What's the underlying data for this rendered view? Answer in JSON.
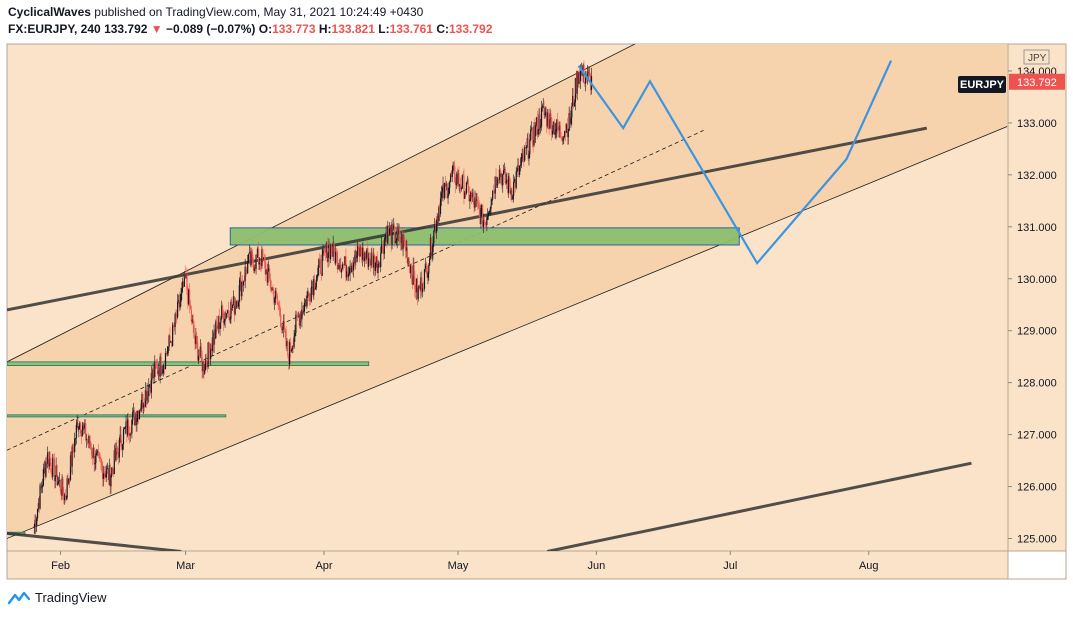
{
  "header": {
    "author": "CyclicalWaves",
    "published_text": " published on TradingView.com, May 31, 2021 10:24:49 +0430",
    "symbol": "FX:EURJPY, 240",
    "last": "133.792",
    "change_arrow": "▼",
    "change": "−0.089 (−0.07%)",
    "open_label": "O:",
    "open": "133.773",
    "high_label": "H:",
    "high": "133.821",
    "low_label": "L:",
    "low": "133.761",
    "close_label": "C:",
    "close": "133.792"
  },
  "footer": {
    "brand": "TradingView"
  },
  "colors": {
    "background": "#fae3c9",
    "channel_fill": "#f7d3ad",
    "up_candle": "#131722",
    "down_candle": "#ef5350",
    "projection": "#3d95e0",
    "zone_green": "#8dbf6f",
    "trendline": "#333333"
  },
  "chart_data": {
    "type": "candlestick",
    "symbol": "EURJPY",
    "currency_label": "JPY",
    "price_label": "EURJPY",
    "ylim": [
      124.75,
      134.3
    ],
    "y_ticks": [
      "125.000",
      "126.000",
      "127.000",
      "128.000",
      "129.000",
      "130.000",
      "131.000",
      "132.000",
      "133.000",
      "134.000"
    ],
    "x_ticks": [
      "Feb",
      "Mar",
      "Apr",
      "May",
      "Jun",
      "Jul",
      "Aug"
    ],
    "price_path": [
      [
        "2021-01-26",
        125.2
      ],
      [
        "2021-01-29",
        126.6
      ],
      [
        "2021-02-02",
        125.8
      ],
      [
        "2021-02-05",
        127.3
      ],
      [
        "2021-02-09",
        126.5
      ],
      [
        "2021-02-12",
        126.2
      ],
      [
        "2021-02-15",
        127.0
      ],
      [
        "2021-02-18",
        127.4
      ],
      [
        "2021-02-22",
        128.2
      ],
      [
        "2021-02-24",
        128.4
      ],
      [
        "2021-02-26",
        128.9
      ],
      [
        "2021-03-01",
        130.0
      ],
      [
        "2021-03-03",
        128.8
      ],
      [
        "2021-03-05",
        128.3
      ],
      [
        "2021-03-09",
        129.3
      ],
      [
        "2021-03-12",
        129.5
      ],
      [
        "2021-03-15",
        130.3
      ],
      [
        "2021-03-18",
        130.4
      ],
      [
        "2021-03-22",
        129.4
      ],
      [
        "2021-03-24",
        128.5
      ],
      [
        "2021-03-26",
        129.2
      ],
      [
        "2021-03-30",
        130.0
      ],
      [
        "2021-04-02",
        130.6
      ],
      [
        "2021-04-06",
        130.2
      ],
      [
        "2021-04-09",
        130.5
      ],
      [
        "2021-04-13",
        130.3
      ],
      [
        "2021-04-15",
        130.9
      ],
      [
        "2021-04-19",
        130.7
      ],
      [
        "2021-04-22",
        129.7
      ],
      [
        "2021-04-24",
        130.2
      ],
      [
        "2021-04-27",
        131.5
      ],
      [
        "2021-04-30",
        132.0
      ],
      [
        "2021-05-03",
        131.7
      ],
      [
        "2021-05-07",
        131.1
      ],
      [
        "2021-05-10",
        132.1
      ],
      [
        "2021-05-13",
        131.7
      ],
      [
        "2021-05-17",
        132.6
      ],
      [
        "2021-05-20",
        133.2
      ],
      [
        "2021-05-24",
        132.8
      ],
      [
        "2021-05-26",
        133.0
      ],
      [
        "2021-05-28",
        134.0
      ],
      [
        "2021-05-31",
        133.792
      ]
    ],
    "projection": [
      [
        "2021-05-28",
        134.1
      ],
      [
        "2021-06-07",
        132.9
      ],
      [
        "2021-06-13",
        133.8
      ],
      [
        "2021-07-07",
        130.3
      ],
      [
        "2021-07-27",
        132.3
      ],
      [
        "2021-08-06",
        134.2
      ]
    ],
    "channel": {
      "upper": [
        [
          "2021-01-20",
          128.4
        ],
        [
          "2021-05-31",
          134.1
        ]
      ],
      "lower": [
        [
          "2021-01-20",
          125.0
        ],
        [
          "2021-06-30",
          130.7
        ]
      ]
    },
    "zones": [
      {
        "start": "2021-03-11",
        "end": "2021-07-03",
        "low": 130.65,
        "high": 130.98
      },
      {
        "start": "2021-01-20",
        "end": "2021-04-11",
        "low": 128.33,
        "high": 128.4
      },
      {
        "start": "2021-01-20",
        "end": "2021-03-10",
        "low": 127.35,
        "high": 127.38
      },
      {
        "start": "2021-01-20",
        "end": "2021-01-24",
        "low": 125.08,
        "high": 125.12
      }
    ],
    "trendlines": [
      [
        [
          "2021-01-20",
          129.4
        ],
        [
          "2021-08-14",
          132.9
        ]
      ],
      [
        [
          "2021-01-20",
          125.1
        ],
        [
          "2021-02-28",
          124.75
        ]
      ],
      [
        [
          "2021-05-21",
          124.75
        ],
        [
          "2021-08-24",
          126.45
        ]
      ]
    ]
  }
}
